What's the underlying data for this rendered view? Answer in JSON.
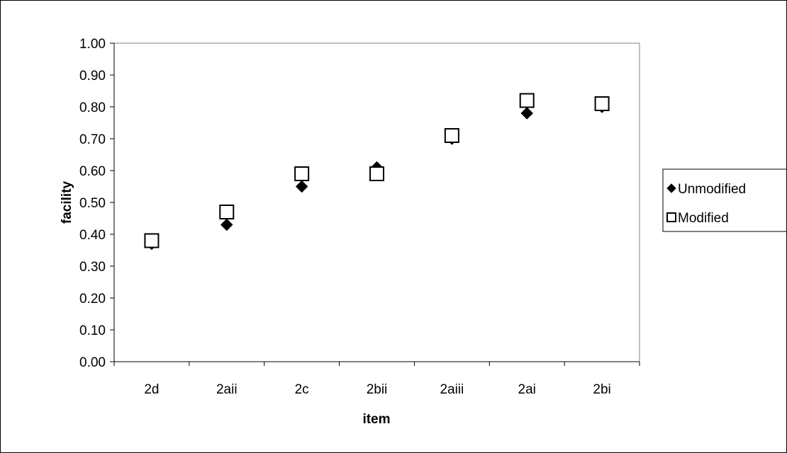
{
  "chart_data": {
    "type": "scatter",
    "title": "",
    "xlabel": "item",
    "ylabel": "facility",
    "categories": [
      "2d",
      "2aii",
      "2c",
      "2bii",
      "2aiii",
      "2ai",
      "2bi"
    ],
    "ylim": [
      0,
      1
    ],
    "yticks": [
      "0.00",
      "0.10",
      "0.20",
      "0.30",
      "0.40",
      "0.50",
      "0.60",
      "0.70",
      "0.80",
      "0.90",
      "1.00"
    ],
    "grid": false,
    "legend_position": "right",
    "series": [
      {
        "name": "Unmodified",
        "marker": "diamond-filled",
        "color": "#000000",
        "values": [
          0.37,
          0.43,
          0.55,
          0.61,
          0.7,
          0.78,
          0.8
        ]
      },
      {
        "name": "Modified",
        "marker": "square-open",
        "color": "#000000",
        "values": [
          0.38,
          0.47,
          0.59,
          0.59,
          0.71,
          0.82,
          0.81
        ]
      }
    ]
  }
}
